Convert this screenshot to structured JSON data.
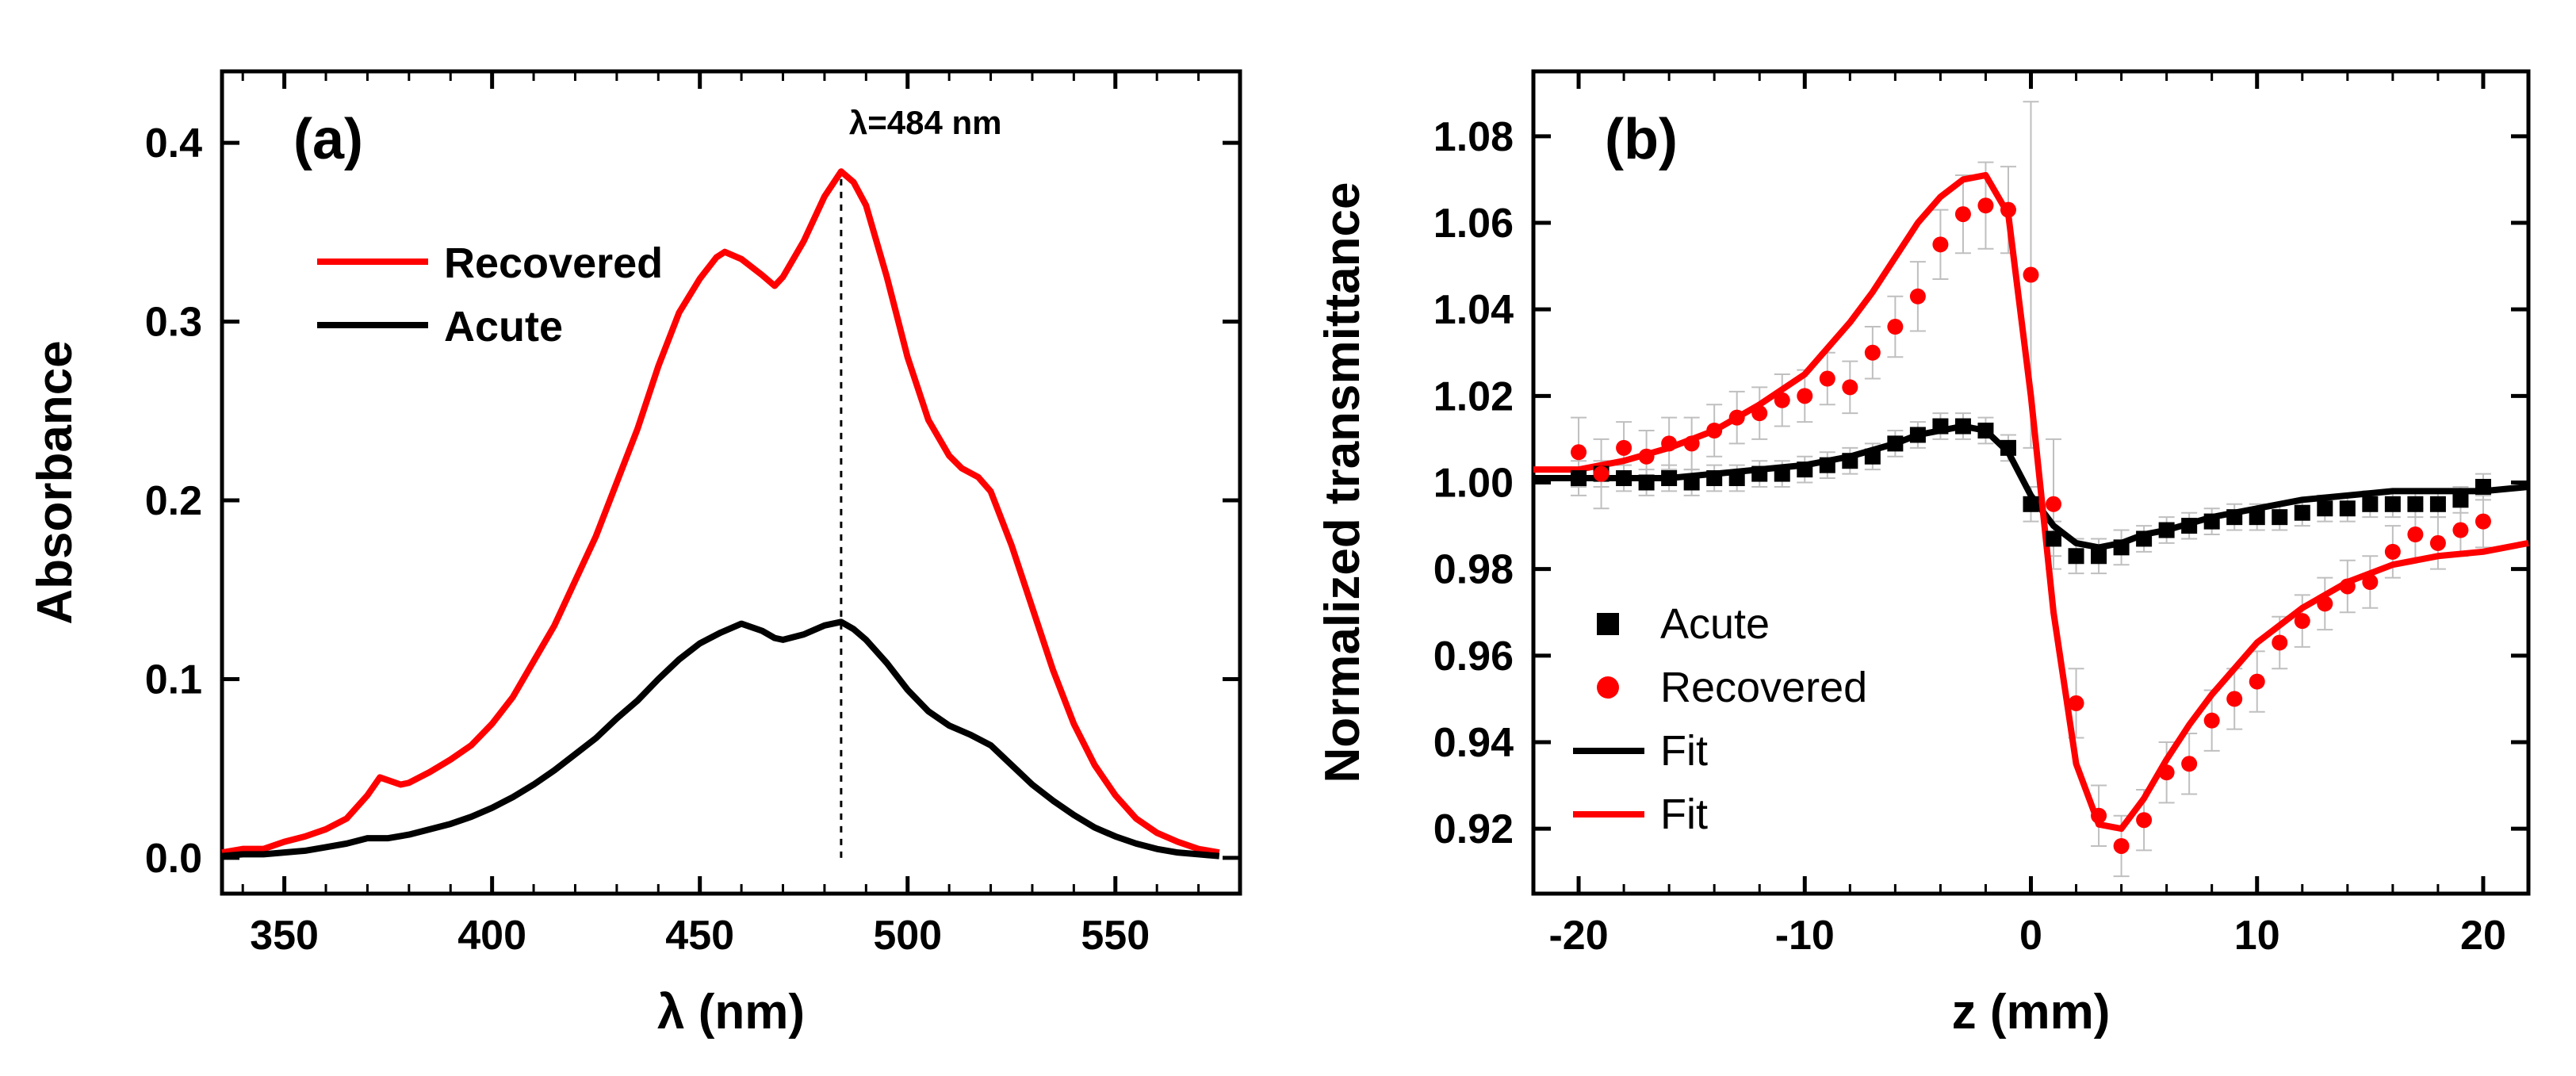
{
  "panel_a": {
    "type": "line",
    "label": "(a)",
    "label_fontsize": 72,
    "label_fontweight": "bold",
    "xlabel": "λ (nm)",
    "ylabel": "Absorbance",
    "axis_label_fontsize": 62,
    "axis_label_fontweight": "bold",
    "tick_fontsize": 52,
    "tick_fontweight": "bold",
    "xlim": [
      335,
      580
    ],
    "ylim": [
      -0.02,
      0.44
    ],
    "xticks": [
      350,
      400,
      450,
      500,
      550
    ],
    "yticks": [
      0.0,
      0.1,
      0.2,
      0.3,
      0.4
    ],
    "reference_line_x": 484,
    "reference_line_label": "λ=484 nm",
    "reference_line_label_fontsize": 42,
    "reference_line_style": "dashed",
    "reference_line_color": "#000000",
    "legend": {
      "items": [
        {
          "label": "Recovered",
          "color": "#ff0000"
        },
        {
          "label": "Acute",
          "color": "#000000"
        }
      ],
      "fontsize": 54,
      "fontweight": "bold",
      "position": "upper-left-inside"
    },
    "line_width": 8,
    "background_color": "#ffffff",
    "axis_color": "#000000",
    "series": [
      {
        "name": "Recovered",
        "color": "#ff0000",
        "x": [
          335,
          340,
          345,
          350,
          355,
          360,
          365,
          370,
          373,
          378,
          380,
          385,
          390,
          395,
          400,
          405,
          410,
          415,
          420,
          425,
          430,
          435,
          440,
          445,
          450,
          454,
          456,
          460,
          465,
          468,
          470,
          475,
          480,
          484,
          487,
          490,
          495,
          500,
          505,
          510,
          513,
          517,
          520,
          525,
          530,
          535,
          540,
          545,
          550,
          555,
          560,
          565,
          570,
          575
        ],
        "y": [
          0.003,
          0.005,
          0.005,
          0.009,
          0.012,
          0.016,
          0.022,
          0.035,
          0.045,
          0.041,
          0.042,
          0.048,
          0.055,
          0.063,
          0.075,
          0.09,
          0.11,
          0.13,
          0.155,
          0.18,
          0.21,
          0.24,
          0.275,
          0.305,
          0.324,
          0.336,
          0.339,
          0.335,
          0.326,
          0.32,
          0.325,
          0.345,
          0.37,
          0.384,
          0.378,
          0.365,
          0.325,
          0.28,
          0.245,
          0.225,
          0.218,
          0.213,
          0.205,
          0.175,
          0.14,
          0.105,
          0.075,
          0.052,
          0.035,
          0.022,
          0.014,
          0.009,
          0.005,
          0.003
        ]
      },
      {
        "name": "Acute",
        "color": "#000000",
        "x": [
          335,
          340,
          345,
          350,
          355,
          360,
          365,
          370,
          375,
          380,
          385,
          390,
          395,
          400,
          405,
          410,
          415,
          420,
          425,
          430,
          435,
          440,
          445,
          450,
          455,
          460,
          465,
          468,
          470,
          475,
          480,
          484,
          487,
          490,
          495,
          500,
          505,
          510,
          515,
          520,
          525,
          530,
          535,
          540,
          545,
          550,
          555,
          560,
          565,
          570,
          575
        ],
        "y": [
          0.001,
          0.002,
          0.002,
          0.003,
          0.004,
          0.006,
          0.008,
          0.011,
          0.011,
          0.013,
          0.016,
          0.019,
          0.023,
          0.028,
          0.034,
          0.041,
          0.049,
          0.058,
          0.067,
          0.078,
          0.088,
          0.1,
          0.111,
          0.12,
          0.126,
          0.131,
          0.127,
          0.123,
          0.122,
          0.125,
          0.13,
          0.132,
          0.128,
          0.122,
          0.109,
          0.094,
          0.082,
          0.074,
          0.069,
          0.063,
          0.052,
          0.041,
          0.032,
          0.024,
          0.017,
          0.012,
          0.008,
          0.005,
          0.003,
          0.002,
          0.001
        ]
      }
    ]
  },
  "panel_b": {
    "type": "scatter+line",
    "label": "(b)",
    "label_fontsize": 72,
    "label_fontweight": "bold",
    "xlabel": "z (mm)",
    "ylabel": "Normalized transmittance",
    "axis_label_fontsize": 62,
    "axis_label_fontweight": "bold",
    "tick_fontsize": 52,
    "tick_fontweight": "bold",
    "xlim": [
      -22,
      22
    ],
    "ylim": [
      0.905,
      1.095
    ],
    "xticks": [
      -20,
      -10,
      0,
      10,
      20
    ],
    "yticks": [
      0.92,
      0.94,
      0.96,
      0.98,
      1.0,
      1.02,
      1.04,
      1.06,
      1.08
    ],
    "marker_size": 20,
    "line_width": 8,
    "errorbar_width": 2,
    "errorbar_color": "#bfbfbf",
    "background_color": "#ffffff",
    "axis_color": "#000000",
    "legend": {
      "items": [
        {
          "label": "Acute",
          "marker": "square",
          "color": "#000000"
        },
        {
          "label": "Recovered",
          "marker": "circle",
          "color": "#ff0000"
        },
        {
          "label": "Fit",
          "type": "line",
          "color": "#000000"
        },
        {
          "label": "Fit",
          "type": "line",
          "color": "#ff0000"
        }
      ],
      "fontsize": 54,
      "position": "lower-left-inside"
    },
    "series_points": [
      {
        "name": "Acute",
        "marker": "square",
        "color": "#000000",
        "x": [
          -20,
          -19,
          -18,
          -17,
          -16,
          -15,
          -14,
          -13,
          -12,
          -11,
          -10,
          -9,
          -8,
          -7,
          -6,
          -5,
          -4,
          -3,
          -2,
          -1,
          0,
          1,
          2,
          3,
          4,
          5,
          6,
          7,
          8,
          9,
          10,
          11,
          12,
          13,
          14,
          15,
          16,
          17,
          18,
          19,
          20
        ],
        "y": [
          1.001,
          1.002,
          1.001,
          1.0,
          1.001,
          1.0,
          1.001,
          1.001,
          1.002,
          1.002,
          1.003,
          1.004,
          1.005,
          1.006,
          1.009,
          1.011,
          1.013,
          1.013,
          1.012,
          1.008,
          0.995,
          0.987,
          0.983,
          0.983,
          0.985,
          0.987,
          0.989,
          0.99,
          0.991,
          0.992,
          0.992,
          0.992,
          0.993,
          0.994,
          0.994,
          0.995,
          0.995,
          0.995,
          0.995,
          0.996,
          0.999
        ],
        "yerr": [
          0.004,
          0.003,
          0.003,
          0.003,
          0.003,
          0.003,
          0.003,
          0.003,
          0.003,
          0.003,
          0.003,
          0.003,
          0.003,
          0.003,
          0.003,
          0.003,
          0.003,
          0.003,
          0.003,
          0.003,
          0.004,
          0.004,
          0.004,
          0.004,
          0.004,
          0.003,
          0.003,
          0.003,
          0.003,
          0.003,
          0.003,
          0.003,
          0.003,
          0.003,
          0.003,
          0.003,
          0.003,
          0.003,
          0.003,
          0.003,
          0.003
        ]
      },
      {
        "name": "Recovered",
        "marker": "circle",
        "color": "#ff0000",
        "x": [
          -20,
          -19,
          -18,
          -17,
          -16,
          -15,
          -14,
          -13,
          -12,
          -11,
          -10,
          -9,
          -8,
          -7,
          -6,
          -5,
          -4,
          -3,
          -2,
          -1,
          0,
          1,
          2,
          3,
          4,
          5,
          6,
          7,
          8,
          9,
          10,
          11,
          12,
          13,
          14,
          15,
          16,
          17,
          18,
          19,
          20
        ],
        "y": [
          1.007,
          1.002,
          1.008,
          1.006,
          1.009,
          1.009,
          1.012,
          1.015,
          1.016,
          1.019,
          1.02,
          1.024,
          1.022,
          1.03,
          1.036,
          1.043,
          1.055,
          1.062,
          1.064,
          1.063,
          1.048,
          0.995,
          0.949,
          0.923,
          0.916,
          0.922,
          0.933,
          0.935,
          0.945,
          0.95,
          0.954,
          0.963,
          0.968,
          0.972,
          0.976,
          0.977,
          0.984,
          0.988,
          0.986,
          0.989,
          0.991
        ],
        "yerr": [
          0.008,
          0.008,
          0.006,
          0.006,
          0.006,
          0.006,
          0.006,
          0.006,
          0.006,
          0.006,
          0.006,
          0.006,
          0.006,
          0.006,
          0.007,
          0.008,
          0.008,
          0.009,
          0.01,
          0.01,
          0.04,
          0.015,
          0.008,
          0.007,
          0.007,
          0.007,
          0.007,
          0.007,
          0.007,
          0.007,
          0.007,
          0.006,
          0.006,
          0.006,
          0.006,
          0.006,
          0.006,
          0.006,
          0.006,
          0.006,
          0.006
        ]
      }
    ],
    "series_fit": [
      {
        "name": "Fit Acute",
        "color": "#000000",
        "x": [
          -22,
          -20,
          -18,
          -16,
          -14,
          -12,
          -10,
          -8,
          -6,
          -5,
          -4,
          -3,
          -2,
          -1,
          0,
          1,
          2,
          3,
          4,
          5,
          6,
          8,
          10,
          12,
          14,
          16,
          18,
          20,
          22
        ],
        "y": [
          1.001,
          1.001,
          1.001,
          1.001,
          1.002,
          1.003,
          1.004,
          1.006,
          1.009,
          1.011,
          1.012,
          1.013,
          1.012,
          1.007,
          0.997,
          0.99,
          0.986,
          0.985,
          0.986,
          0.988,
          0.989,
          0.992,
          0.994,
          0.996,
          0.997,
          0.998,
          0.998,
          0.998,
          0.999
        ]
      },
      {
        "name": "Fit Recovered",
        "color": "#ff0000",
        "x": [
          -22,
          -20,
          -18,
          -16,
          -14,
          -12,
          -10,
          -8,
          -7,
          -6,
          -5,
          -4,
          -3,
          -2,
          -1,
          0,
          1,
          2,
          3,
          4,
          5,
          6,
          7,
          8,
          10,
          12,
          14,
          16,
          18,
          20,
          22
        ],
        "y": [
          1.003,
          1.003,
          1.005,
          1.008,
          1.012,
          1.018,
          1.025,
          1.037,
          1.044,
          1.052,
          1.06,
          1.066,
          1.07,
          1.071,
          1.062,
          1.02,
          0.97,
          0.935,
          0.921,
          0.92,
          0.927,
          0.936,
          0.944,
          0.951,
          0.963,
          0.971,
          0.977,
          0.981,
          0.983,
          0.984,
          0.986
        ]
      }
    ]
  }
}
